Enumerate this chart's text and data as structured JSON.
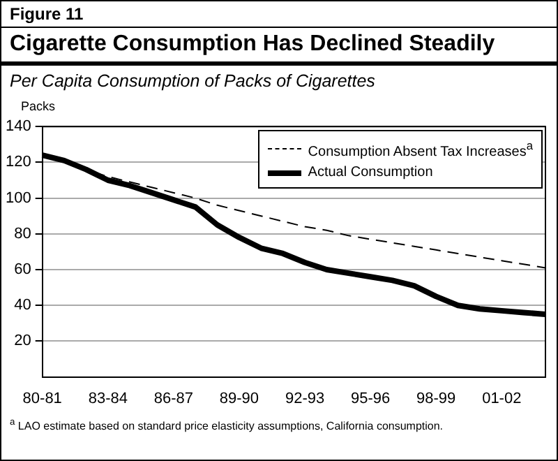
{
  "chart_data": {
    "type": "line",
    "title": "Cigarette Consumption Has Declined Steadily",
    "subtitle": "Per Capita Consumption of Packs of Cigarettes",
    "ylabel": "Packs",
    "annotations": [
      "Figure 11",
      "$^{a}$ LAO estimate based on standard price elasticity assumptions, California consumption."
    ],
    "categories": [
      "80-81",
      null,
      null,
      "83-84",
      null,
      null,
      "86-87",
      null,
      null,
      "89-90",
      null,
      null,
      "92-93",
      null,
      null,
      "95-96",
      null,
      null,
      "98-99",
      null,
      null,
      "01-02",
      null,
      null
    ],
    "series": [
      {
        "name": "Consumption Absent Tax Increases$^{a}$",
        "color": "#000000",
        "line_style": "dashed",
        "values": [
          124,
          120,
          116,
          112,
          109,
          106,
          103,
          100,
          96,
          93,
          90,
          87,
          84,
          82,
          79,
          77,
          75,
          73,
          71,
          69,
          67,
          65,
          63,
          61
        ]
      },
      {
        "name": "Actual Consumption",
        "color": "#000000",
        "line_style": "solid",
        "values": [
          124,
          121,
          116,
          110,
          107,
          103,
          99,
          95,
          85,
          78,
          72,
          69,
          64,
          60,
          58,
          56,
          54,
          51,
          45,
          40,
          38,
          37,
          36,
          35
        ]
      }
    ],
    "ylim": [
      0,
      140
    ],
    "yticks": [
      20,
      40,
      60,
      80,
      100,
      120,
      140
    ],
    "grid": "y",
    "legend": "top right",
    "marker": "none"
  }
}
